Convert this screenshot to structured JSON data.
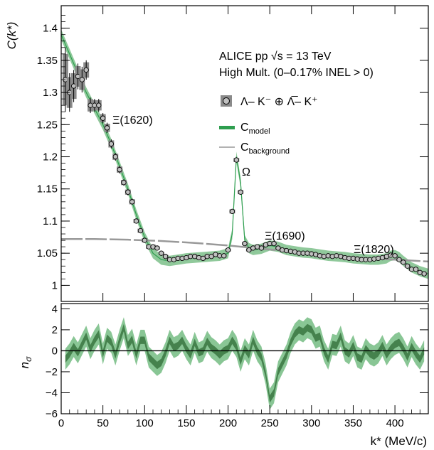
{
  "chart_data": [
    {
      "type": "scatter",
      "panel": "correlation",
      "ylabel": "C(k*)",
      "xlim": [
        0,
        440
      ],
      "ylim": [
        0.975,
        1.435
      ],
      "y_ticks": [
        1,
        1.05,
        1.1,
        1.15,
        1.2,
        1.25,
        1.3,
        1.35,
        1.4
      ],
      "y_tick_labels": [
        "1",
        "1.05",
        "1.1",
        "1.15",
        "1.2",
        "1.25",
        "1.3",
        "1.35",
        "1.4"
      ],
      "header_lines": [
        "ALICE pp √s = 13 TeV",
        "High Mult. (0–0.17% INEL > 0)"
      ],
      "legend": {
        "placement": "top-right",
        "entries": [
          {
            "label": "Λ– K⁻ ⊕ Λ̅– K⁺",
            "marker": "open-circle-with-grey-box"
          },
          {
            "label": "C_model",
            "marker": "green-band"
          },
          {
            "label": "C_background",
            "marker": "grey-line"
          }
        ]
      },
      "annotations": [
        {
          "text": "Ξ(1620)",
          "x": 88,
          "y": 1.265
        },
        {
          "text": "Ω",
          "x": 220,
          "y": 1.19
        },
        {
          "text": "Ξ(1690)",
          "x": 280,
          "y": 1.08
        },
        {
          "text": "Ξ(1820)",
          "x": 390,
          "y": 1.06
        }
      ],
      "colors": {
        "model": "#2e9e4f",
        "band": "#7cc08a",
        "background": "#999999",
        "marker_fill": "#c0c0c0",
        "sys_box": "#8a8a8a"
      },
      "series": [
        {
          "name": "Λ– K⁻ ⊕ Λ̅– K⁺",
          "x": [
            5,
            10,
            15,
            20,
            25,
            30,
            35,
            40,
            45,
            50,
            55,
            60,
            65,
            70,
            75,
            80,
            85,
            90,
            95,
            100,
            105,
            110,
            115,
            120,
            125,
            130,
            135,
            140,
            145,
            150,
            155,
            160,
            165,
            170,
            175,
            180,
            185,
            190,
            195,
            200,
            205,
            210,
            215,
            220,
            225,
            230,
            235,
            240,
            245,
            250,
            255,
            260,
            265,
            270,
            275,
            280,
            285,
            290,
            295,
            300,
            305,
            310,
            315,
            320,
            325,
            330,
            335,
            340,
            345,
            350,
            355,
            360,
            365,
            370,
            375,
            380,
            385,
            390,
            395,
            400,
            405,
            410,
            415,
            420,
            425,
            430,
            435
          ],
          "y": [
            1.32,
            1.3,
            1.31,
            1.325,
            1.32,
            1.335,
            1.28,
            1.28,
            1.28,
            1.26,
            1.245,
            1.22,
            1.2,
            1.18,
            1.16,
            1.145,
            1.13,
            1.1,
            1.085,
            1.07,
            1.06,
            1.06,
            1.058,
            1.05,
            1.045,
            1.04,
            1.04,
            1.042,
            1.042,
            1.043,
            1.045,
            1.045,
            1.043,
            1.042,
            1.045,
            1.045,
            1.048,
            1.046,
            1.046,
            1.055,
            1.115,
            1.195,
            1.145,
            1.065,
            1.055,
            1.058,
            1.06,
            1.058,
            1.063,
            1.065,
            1.065,
            1.058,
            1.055,
            1.054,
            1.053,
            1.052,
            1.05,
            1.05,
            1.05,
            1.049,
            1.048,
            1.046,
            1.045,
            1.046,
            1.045,
            1.046,
            1.045,
            1.043,
            1.042,
            1.042,
            1.041,
            1.04,
            1.04,
            1.04,
            1.041,
            1.042,
            1.043,
            1.045,
            1.047,
            1.046,
            1.04,
            1.036,
            1.03,
            1.025,
            1.025,
            1.02,
            1.018
          ],
          "yerr": [
            0.05,
            0.03,
            0.025,
            0.02,
            0.02,
            0.015,
            0.012,
            0.01,
            0.01,
            0.008,
            0.008,
            0.007,
            0.006,
            0.006,
            0.005,
            0.005,
            0.005,
            0.004,
            0.004,
            0.004,
            0.004,
            0.004,
            0.003,
            0.003,
            0.003,
            0.003,
            0.003,
            0.003,
            0.003,
            0.003,
            0.003,
            0.003,
            0.003,
            0.003,
            0.003,
            0.003,
            0.003,
            0.003,
            0.003,
            0.003,
            0.004,
            0.004,
            0.004,
            0.003,
            0.003,
            0.003,
            0.003,
            0.003,
            0.003,
            0.003,
            0.003,
            0.003,
            0.003,
            0.003,
            0.003,
            0.003,
            0.003,
            0.003,
            0.003,
            0.003,
            0.003,
            0.003,
            0.003,
            0.003,
            0.003,
            0.003,
            0.003,
            0.003,
            0.003,
            0.003,
            0.003,
            0.003,
            0.003,
            0.003,
            0.003,
            0.003,
            0.003,
            0.003,
            0.003,
            0.003,
            0.003,
            0.003,
            0.003,
            0.003,
            0.003,
            0.003,
            0.003
          ]
        },
        {
          "name": "C_model",
          "x": [
            0,
            10,
            20,
            30,
            40,
            50,
            60,
            70,
            80,
            90,
            100,
            110,
            120,
            130,
            140,
            150,
            160,
            170,
            180,
            190,
            200,
            205,
            210,
            215,
            220,
            225,
            230,
            240,
            250,
            260,
            270,
            280,
            290,
            300,
            310,
            320,
            330,
            340,
            350,
            360,
            370,
            380,
            390,
            395,
            400,
            405,
            410,
            420,
            430,
            440
          ],
          "y": [
            1.39,
            1.36,
            1.33,
            1.3,
            1.275,
            1.25,
            1.22,
            1.185,
            1.15,
            1.11,
            1.075,
            1.05,
            1.04,
            1.038,
            1.04,
            1.042,
            1.043,
            1.044,
            1.045,
            1.046,
            1.05,
            1.08,
            1.2,
            1.16,
            1.07,
            1.058,
            1.055,
            1.057,
            1.062,
            1.06,
            1.055,
            1.053,
            1.051,
            1.05,
            1.048,
            1.046,
            1.045,
            1.044,
            1.042,
            1.041,
            1.04,
            1.04,
            1.042,
            1.046,
            1.047,
            1.044,
            1.038,
            1.028,
            1.022,
            1.018
          ],
          "band_halfwidth": 0.008
        },
        {
          "name": "C_background",
          "x": [
            0,
            40,
            80,
            120,
            160,
            200,
            240,
            280,
            320,
            360,
            400,
            440
          ],
          "y": [
            1.072,
            1.072,
            1.071,
            1.069,
            1.066,
            1.062,
            1.057,
            1.052,
            1.047,
            1.043,
            1.04,
            1.037
          ]
        }
      ]
    },
    {
      "type": "area",
      "panel": "residuals",
      "xlabel": "k* (MeV/c)",
      "ylabel": "nσ",
      "xlim": [
        0,
        440
      ],
      "ylim": [
        -6,
        4.5
      ],
      "x_ticks": [
        0,
        50,
        100,
        150,
        200,
        250,
        300,
        350,
        400
      ],
      "x_tick_labels": [
        "0",
        "50",
        "100",
        "150",
        "200",
        "250",
        "300",
        "350",
        "400"
      ],
      "y_ticks": [
        -6,
        -4,
        -2,
        0,
        2,
        4
      ],
      "y_tick_labels": [
        "−6",
        "−4",
        "−2",
        "0",
        "2",
        "4"
      ],
      "series": [
        {
          "name": "nσ",
          "x": [
            5,
            10,
            15,
            20,
            25,
            30,
            35,
            40,
            45,
            50,
            55,
            60,
            65,
            70,
            75,
            80,
            85,
            90,
            95,
            100,
            105,
            110,
            115,
            120,
            125,
            130,
            135,
            140,
            145,
            150,
            155,
            160,
            165,
            170,
            175,
            180,
            185,
            190,
            195,
            200,
            205,
            210,
            215,
            220,
            225,
            230,
            235,
            240,
            245,
            250,
            255,
            260,
            265,
            270,
            275,
            280,
            285,
            290,
            295,
            300,
            305,
            310,
            315,
            320,
            325,
            330,
            335,
            340,
            345,
            350,
            355,
            360,
            365,
            370,
            375,
            380,
            385,
            390,
            395,
            400,
            405,
            410,
            415,
            420,
            425,
            430,
            435
          ],
          "center": [
            -0.8,
            -0.3,
            0.4,
            -0.2,
            0.6,
            1.4,
            0.2,
            1.0,
            1.6,
            -0.3,
            1.2,
            0.8,
            -0.4,
            1.0,
            2.2,
            0.5,
            1.1,
            -0.4,
            1.0,
            1.0,
            -0.6,
            -1.0,
            -1.4,
            -1.1,
            -0.2,
            1.0,
            0.3,
            0.5,
            1.0,
            0.2,
            -0.4,
            0.8,
            -0.2,
            0.0,
            0.9,
            0.3,
            0.0,
            -0.4,
            0.0,
            0.2,
            1.0,
            0.4,
            -1.0,
            0.2,
            -0.4,
            1.0,
            0.0,
            -0.6,
            -2.2,
            -4.6,
            -4.0,
            -2.0,
            -1.2,
            -0.4,
            0.8,
            1.6,
            2.0,
            1.8,
            2.2,
            2.0,
            1.2,
            1.4,
            0.0,
            -0.8,
            0.6,
            0.5,
            1.4,
            0.0,
            -0.3,
            0.5,
            -0.6,
            -0.8,
            0.2,
            -0.3,
            -0.5,
            -0.2,
            0.5,
            -0.4,
            0.2,
            0.6,
            0.8,
            0.2,
            -0.6,
            0.4,
            -0.3,
            -0.8,
            0.0
          ],
          "outer_halfwidth": 1.0,
          "inner_halfwidth": 0.35
        }
      ]
    }
  ]
}
